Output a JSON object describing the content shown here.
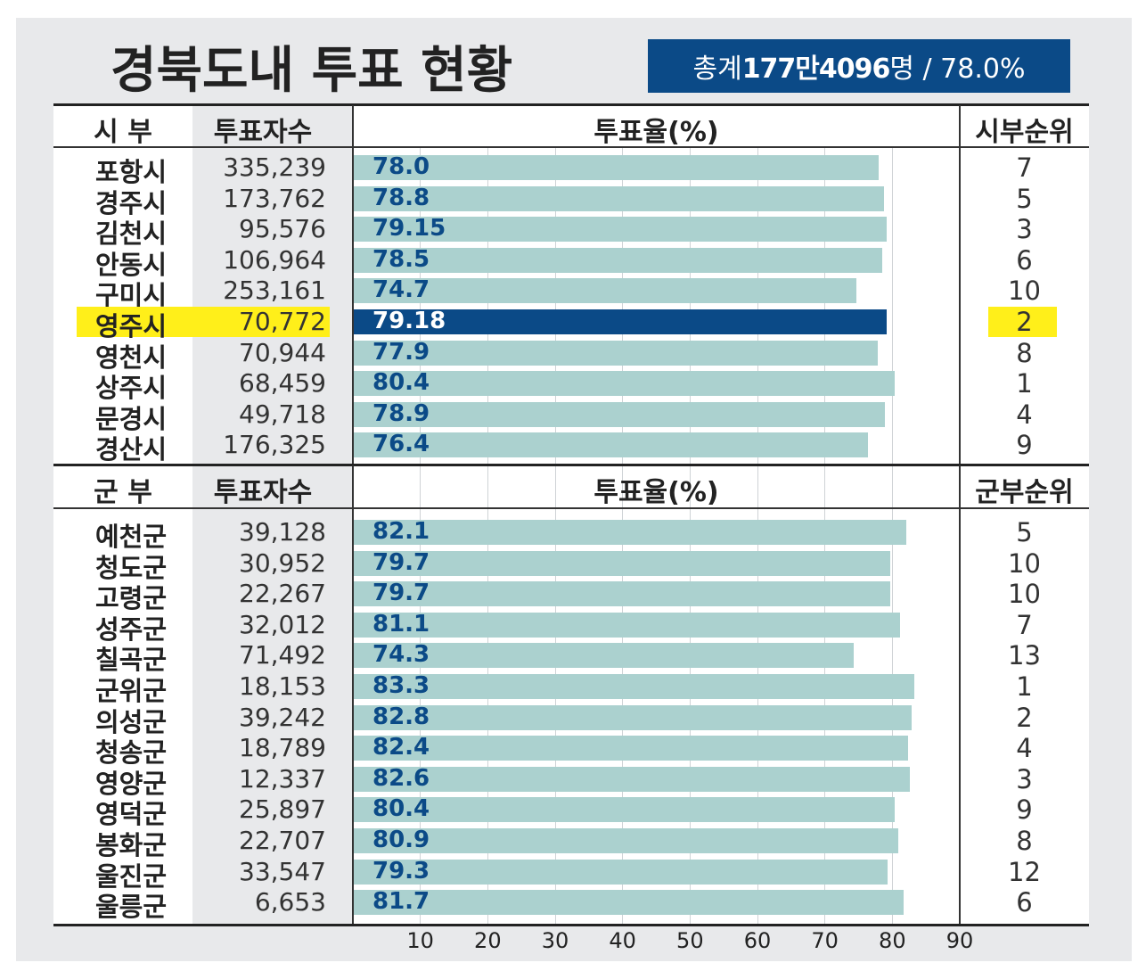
{
  "title": "경북도내 투표 현황",
  "total": {
    "prefix": "총계 ",
    "voters": "177만4096",
    "suffix": "명 / 78.0%"
  },
  "headers": {
    "si_name": "시  부",
    "voters": "투표자수",
    "turnout": "투표율(%)",
    "si_rank": "시부순위",
    "gun_name": "군  부",
    "gun_rank": "군부순위"
  },
  "highlight_city": "영주시",
  "colors": {
    "bar": "#abd1cf",
    "highlight_bar": "#0b4a87",
    "highlight_label": "#ffef1a",
    "value_text": "#0b4a87"
  },
  "chart_data": {
    "type": "bar",
    "orientation": "horizontal",
    "x_ticks": [
      "10",
      "20",
      "30",
      "40",
      "50",
      "60",
      "70",
      "80",
      "90"
    ],
    "xlim": [
      0,
      90
    ],
    "grid": true,
    "groups": [
      {
        "name": "시  부",
        "rows": [
          {
            "name": "포항시",
            "voters": "335,239",
            "turnout": 78.0,
            "label": "78.0",
            "rank": "7"
          },
          {
            "name": "경주시",
            "voters": "173,762",
            "turnout": 78.8,
            "label": "78.8",
            "rank": "5"
          },
          {
            "name": "김천시",
            "voters": "95,576",
            "turnout": 79.15,
            "label": "79.15",
            "rank": "3"
          },
          {
            "name": "안동시",
            "voters": "106,964",
            "turnout": 78.5,
            "label": "78.5",
            "rank": "6"
          },
          {
            "name": "구미시",
            "voters": "253,161",
            "turnout": 74.7,
            "label": "74.7",
            "rank": "10"
          },
          {
            "name": "영주시",
            "voters": "70,772",
            "turnout": 79.18,
            "label": "79.18",
            "rank": "2"
          },
          {
            "name": "영천시",
            "voters": "70,944",
            "turnout": 77.9,
            "label": "77.9",
            "rank": "8"
          },
          {
            "name": "상주시",
            "voters": "68,459",
            "turnout": 80.4,
            "label": "80.4",
            "rank": "1"
          },
          {
            "name": "문경시",
            "voters": "49,718",
            "turnout": 78.9,
            "label": "78.9",
            "rank": "4"
          },
          {
            "name": "경산시",
            "voters": "176,325",
            "turnout": 76.4,
            "label": "76.4",
            "rank": "9"
          }
        ]
      },
      {
        "name": "군  부",
        "rows": [
          {
            "name": "예천군",
            "voters": "39,128",
            "turnout": 82.1,
            "label": "82.1",
            "rank": "5"
          },
          {
            "name": "청도군",
            "voters": "30,952",
            "turnout": 79.7,
            "label": "79.7",
            "rank": "10"
          },
          {
            "name": "고령군",
            "voters": "22,267",
            "turnout": 79.7,
            "label": "79.7",
            "rank": "10"
          },
          {
            "name": "성주군",
            "voters": "32,012",
            "turnout": 81.1,
            "label": "81.1",
            "rank": "7"
          },
          {
            "name": "칠곡군",
            "voters": "71,492",
            "turnout": 74.3,
            "label": "74.3",
            "rank": "13"
          },
          {
            "name": "군위군",
            "voters": "18,153",
            "turnout": 83.3,
            "label": "83.3",
            "rank": "1"
          },
          {
            "name": "의성군",
            "voters": "39,242",
            "turnout": 82.8,
            "label": "82.8",
            "rank": "2"
          },
          {
            "name": "청송군",
            "voters": "18,789",
            "turnout": 82.4,
            "label": "82.4",
            "rank": "4"
          },
          {
            "name": "영양군",
            "voters": "12,337",
            "turnout": 82.6,
            "label": "82.6",
            "rank": "3"
          },
          {
            "name": "영덕군",
            "voters": "25,897",
            "turnout": 80.4,
            "label": "80.4",
            "rank": "9"
          },
          {
            "name": "봉화군",
            "voters": "22,707",
            "turnout": 80.9,
            "label": "80.9",
            "rank": "8"
          },
          {
            "name": "울진군",
            "voters": "33,547",
            "turnout": 79.3,
            "label": "79.3",
            "rank": "12"
          },
          {
            "name": "울릉군",
            "voters": "6,653",
            "turnout": 81.7,
            "label": "81.7",
            "rank": "6"
          }
        ]
      }
    ]
  }
}
